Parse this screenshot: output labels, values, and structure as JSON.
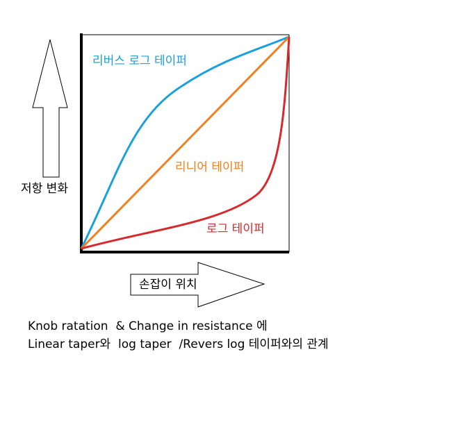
{
  "axes": {
    "y_label": "저항 변화",
    "x_label": "손잡이 위치"
  },
  "curves": [
    {
      "label": "리버스 로그 테이퍼"
    },
    {
      "label": "리니어 테이퍼"
    },
    {
      "label": "로그 테이퍼"
    }
  ],
  "caption": {
    "lines": [
      "Knob ratation  & Change in resistance 에",
      "Linear taper와  log taper  /Revers log 테이퍼와의 관계"
    ]
  }
}
